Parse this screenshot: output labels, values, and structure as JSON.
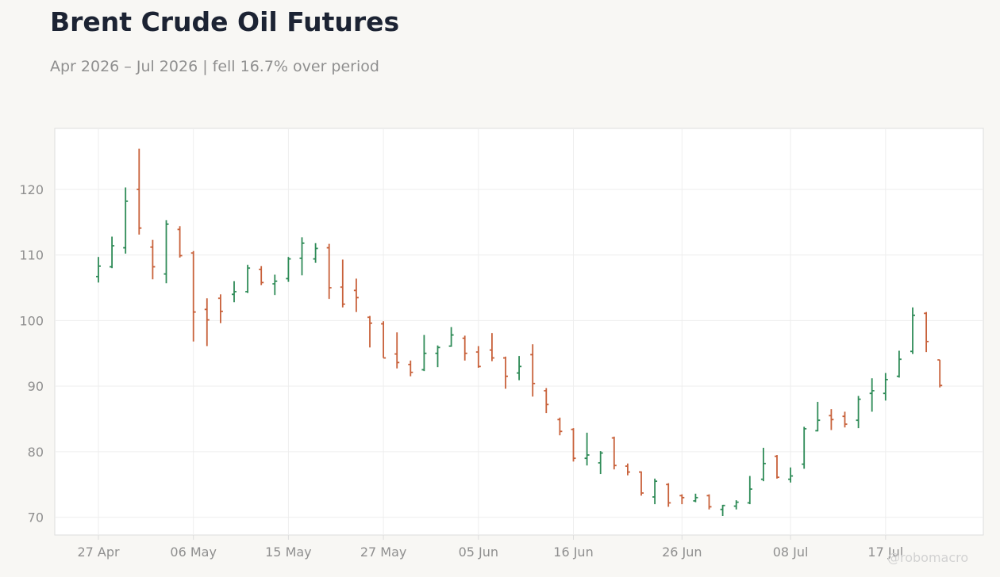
{
  "header": {
    "title": "Brent Crude Oil Futures",
    "subtitle": "Apr 2026 – Jul 2026 | fell 16.7% over period"
  },
  "watermark": "@robomacro",
  "colors": {
    "background": "#f8f7f4",
    "plot_background": "#ffffff",
    "up": "#2e8b57",
    "down": "#c8613a",
    "grid": "#eeeeee",
    "frame": "#dddddd",
    "title": "#1c2333",
    "muted": "#8f8f8f"
  },
  "chart_data": {
    "type": "ohlc",
    "title": "Brent Crude Oil Futures",
    "subtitle": "Apr 2026 – Jul 2026 | fell 16.7% over period",
    "xlabel": "",
    "ylabel": "",
    "ylim": [
      67.3,
      129.3
    ],
    "yticks": [
      70,
      80,
      90,
      100,
      110,
      120
    ],
    "xticks": [
      "27 Apr",
      "06 May",
      "15 May",
      "27 May",
      "05 Jun",
      "16 Jun",
      "26 Jun",
      "08 Jul",
      "17 Jul"
    ],
    "grid": true,
    "bars": [
      {
        "date": "27 Apr",
        "o": 106.7,
        "h": 109.7,
        "l": 105.8,
        "c": 108.3
      },
      {
        "date": "28 Apr",
        "o": 108.2,
        "h": 112.8,
        "l": 108.0,
        "c": 111.4
      },
      {
        "date": "29 Apr",
        "o": 111.1,
        "h": 120.3,
        "l": 110.2,
        "c": 118.2
      },
      {
        "date": "30 Apr",
        "o": 120.0,
        "h": 126.2,
        "l": 113.1,
        "c": 114.1
      },
      {
        "date": "01 May",
        "o": 111.2,
        "h": 112.3,
        "l": 106.3,
        "c": 108.2
      },
      {
        "date": "04 May",
        "o": 107.1,
        "h": 115.3,
        "l": 105.7,
        "c": 114.7
      },
      {
        "date": "05 May",
        "o": 113.9,
        "h": 114.4,
        "l": 109.6,
        "c": 109.9
      },
      {
        "date": "06 May",
        "o": 110.3,
        "h": 110.6,
        "l": 96.8,
        "c": 101.3
      },
      {
        "date": "07 May",
        "o": 101.7,
        "h": 103.4,
        "l": 96.1,
        "c": 100.1
      },
      {
        "date": "08 May",
        "o": 103.4,
        "h": 104.0,
        "l": 99.6,
        "c": 101.4
      },
      {
        "date": "11 May",
        "o": 104.0,
        "h": 106.0,
        "l": 102.8,
        "c": 104.4
      },
      {
        "date": "12 May",
        "o": 104.4,
        "h": 108.5,
        "l": 104.2,
        "c": 108.0
      },
      {
        "date": "13 May",
        "o": 107.8,
        "h": 108.3,
        "l": 105.4,
        "c": 105.8
      },
      {
        "date": "14 May",
        "o": 105.6,
        "h": 107.0,
        "l": 103.9,
        "c": 106.0
      },
      {
        "date": "15 May",
        "o": 106.4,
        "h": 109.7,
        "l": 105.9,
        "c": 109.4
      },
      {
        "date": "18 May",
        "o": 109.5,
        "h": 112.7,
        "l": 106.9,
        "c": 111.8
      },
      {
        "date": "19 May",
        "o": 109.4,
        "h": 111.8,
        "l": 108.8,
        "c": 111.0
      },
      {
        "date": "20 May",
        "o": 111.1,
        "h": 111.7,
        "l": 103.3,
        "c": 105.0
      },
      {
        "date": "21 May",
        "o": 105.1,
        "h": 109.3,
        "l": 102.0,
        "c": 102.5
      },
      {
        "date": "22 May",
        "o": 104.6,
        "h": 106.4,
        "l": 101.3,
        "c": 103.5
      },
      {
        "date": "26 May",
        "o": 100.5,
        "h": 100.7,
        "l": 95.9,
        "c": 99.6
      },
      {
        "date": "27 May",
        "o": 99.5,
        "h": 99.9,
        "l": 94.3,
        "c": 94.3
      },
      {
        "date": "28 May",
        "o": 94.9,
        "h": 98.2,
        "l": 92.7,
        "c": 93.6
      },
      {
        "date": "29 May",
        "o": 93.3,
        "h": 93.9,
        "l": 91.5,
        "c": 92.1
      },
      {
        "date": "01 Jun",
        "o": 92.5,
        "h": 97.8,
        "l": 92.3,
        "c": 95.0
      },
      {
        "date": "02 Jun",
        "o": 95.0,
        "h": 96.2,
        "l": 92.9,
        "c": 95.9
      },
      {
        "date": "03 Jun",
        "o": 96.1,
        "h": 99.0,
        "l": 96.0,
        "c": 97.8
      },
      {
        "date": "04 Jun",
        "o": 97.3,
        "h": 97.7,
        "l": 93.9,
        "c": 95.0
      },
      {
        "date": "05 Jun",
        "o": 95.2,
        "h": 96.1,
        "l": 92.8,
        "c": 93.0
      },
      {
        "date": "08 Jun",
        "o": 95.5,
        "h": 98.1,
        "l": 93.8,
        "c": 94.3
      },
      {
        "date": "09 Jun",
        "o": 94.3,
        "h": 94.5,
        "l": 89.6,
        "c": 91.5
      },
      {
        "date": "10 Jun",
        "o": 92.0,
        "h": 94.6,
        "l": 90.9,
        "c": 93.0
      },
      {
        "date": "11 Jun",
        "o": 94.8,
        "h": 96.4,
        "l": 88.4,
        "c": 90.4
      },
      {
        "date": "12 Jun",
        "o": 89.3,
        "h": 89.7,
        "l": 85.9,
        "c": 87.2
      },
      {
        "date": "15 Jun",
        "o": 84.9,
        "h": 85.2,
        "l": 82.5,
        "c": 83.1
      },
      {
        "date": "16 Jun",
        "o": 83.4,
        "h": 83.6,
        "l": 78.5,
        "c": 79.0
      },
      {
        "date": "17 Jun",
        "o": 79.0,
        "h": 82.9,
        "l": 77.9,
        "c": 79.5
      },
      {
        "date": "18 Jun",
        "o": 78.3,
        "h": 80.1,
        "l": 76.6,
        "c": 79.8
      },
      {
        "date": "19 Jun",
        "o": 82.1,
        "h": 82.3,
        "l": 77.3,
        "c": 77.9
      },
      {
        "date": "22 Jun",
        "o": 77.8,
        "h": 78.2,
        "l": 76.4,
        "c": 76.9
      },
      {
        "date": "23 Jun",
        "o": 76.9,
        "h": 77.0,
        "l": 73.3,
        "c": 73.7
      },
      {
        "date": "24 Jun",
        "o": 73.1,
        "h": 75.9,
        "l": 72.0,
        "c": 75.5
      },
      {
        "date": "25 Jun",
        "o": 75.0,
        "h": 75.2,
        "l": 71.6,
        "c": 72.2
      },
      {
        "date": "26 Jun",
        "o": 73.3,
        "h": 73.5,
        "l": 72.0,
        "c": 73.0
      },
      {
        "date": "29 Jun",
        "o": 72.5,
        "h": 73.6,
        "l": 72.3,
        "c": 73.0
      },
      {
        "date": "30 Jun",
        "o": 73.3,
        "h": 73.5,
        "l": 71.2,
        "c": 71.6
      },
      {
        "date": "01 Jul",
        "o": 71.2,
        "h": 71.9,
        "l": 70.2,
        "c": 71.8
      },
      {
        "date": "02 Jul",
        "o": 71.7,
        "h": 72.6,
        "l": 71.2,
        "c": 72.3
      },
      {
        "date": "03 Jul",
        "o": 72.2,
        "h": 76.3,
        "l": 72.0,
        "c": 74.3
      },
      {
        "date": "06 Jul",
        "o": 75.8,
        "h": 80.6,
        "l": 75.5,
        "c": 78.2
      },
      {
        "date": "07 Jul",
        "o": 79.3,
        "h": 79.5,
        "l": 75.9,
        "c": 76.1
      },
      {
        "date": "08 Jul",
        "o": 75.8,
        "h": 77.6,
        "l": 75.3,
        "c": 76.3
      },
      {
        "date": "09 Jul",
        "o": 78.1,
        "h": 83.8,
        "l": 77.4,
        "c": 83.5
      },
      {
        "date": "10 Jul",
        "o": 83.2,
        "h": 87.6,
        "l": 83.1,
        "c": 84.8
      },
      {
        "date": "13 Jul",
        "o": 85.5,
        "h": 86.5,
        "l": 83.3,
        "c": 84.9
      },
      {
        "date": "14 Jul",
        "o": 85.4,
        "h": 86.1,
        "l": 83.7,
        "c": 84.2
      },
      {
        "date": "15 Jul",
        "o": 84.8,
        "h": 88.5,
        "l": 83.6,
        "c": 88.0
      },
      {
        "date": "16 Jul",
        "o": 88.9,
        "h": 91.2,
        "l": 86.1,
        "c": 89.3
      },
      {
        "date": "17 Jul",
        "o": 88.9,
        "h": 92.0,
        "l": 87.8,
        "c": 91.0
      },
      {
        "date": "20 Jul",
        "o": 91.5,
        "h": 95.4,
        "l": 91.3,
        "c": 94.1
      },
      {
        "date": "21 Jul",
        "o": 95.3,
        "h": 102.0,
        "l": 94.9,
        "c": 100.8
      },
      {
        "date": "22 Jul",
        "o": 101.1,
        "h": 101.3,
        "l": 95.2,
        "c": 96.8
      },
      {
        "date": "23 Jul",
        "o": 94.0,
        "h": 94.0,
        "l": 89.8,
        "c": 90.1
      }
    ]
  }
}
